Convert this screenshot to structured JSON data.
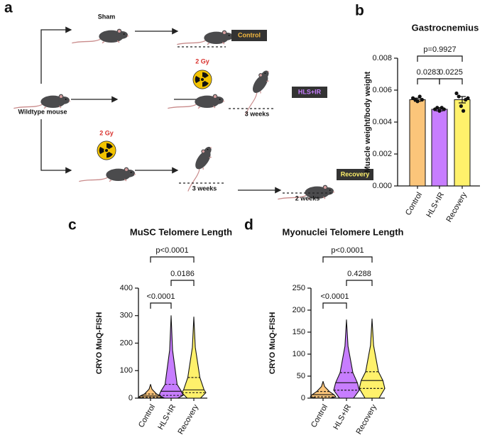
{
  "diagram": {
    "panel": "a",
    "sham": "Sham",
    "control": "Control",
    "dose1": "2 Gy",
    "hlsir": "HLS+IR",
    "wildtype": "Wildtype mouse",
    "weeks1": "3 weeks",
    "dose2": "2 Gy",
    "recovery": "Recovery",
    "weeks2": "3 weeks",
    "weeks3": "2 weeks"
  },
  "chart_data": [
    {
      "type": "bar",
      "panel": "b",
      "title": "Gastrocnemius",
      "ylabel": "Muscle weight/body weight",
      "categories": [
        "Control",
        "HLS+IR",
        "Recovery"
      ],
      "values": [
        0.0054,
        0.0048,
        0.0054
      ],
      "errors": [
        0.0001,
        0.0001,
        0.0002
      ],
      "points": [
        [
          0.0055,
          0.0054,
          0.0053,
          0.0056,
          0.0054
        ],
        [
          0.0048,
          0.0049,
          0.0047,
          0.0049,
          0.0048
        ],
        [
          0.0058,
          0.0056,
          0.005,
          0.0047,
          0.0054,
          0.0055
        ]
      ],
      "colors": [
        "#fbc57a",
        "#c77dff",
        "#fff16b"
      ],
      "ylim": [
        0,
        0.008
      ],
      "yticks": [
        {
          "value": 0,
          "label": "0.000"
        },
        {
          "value": 0.002,
          "label": "0.002"
        },
        {
          "value": 0.004,
          "label": "0.004"
        },
        {
          "value": 0.006,
          "label": "0.006"
        },
        {
          "value": 0.008,
          "label": "0.008"
        }
      ],
      "comparisons": [
        {
          "pair": [
            "Control",
            "HLS+IR"
          ],
          "label": "0.0283"
        },
        {
          "pair": [
            "HLS+IR",
            "Recovery"
          ],
          "label": "0.0225"
        },
        {
          "pair": [
            "Control",
            "Recovery"
          ],
          "label": "p=0.9927"
        }
      ]
    },
    {
      "type": "violin",
      "panel": "c",
      "title": "MuSC Telomere Length",
      "ylabel": "CRYO MuQ-FISH",
      "categories": [
        "Control",
        "HLS+IR",
        "Recovery"
      ],
      "violins": [
        {
          "min": 0,
          "q1": 3,
          "median": 8,
          "q3": 15,
          "max": 50
        },
        {
          "min": 0,
          "q1": 10,
          "median": 25,
          "q3": 50,
          "max": 300
        },
        {
          "min": 0,
          "q1": 20,
          "median": 30,
          "q3": 75,
          "max": 295
        }
      ],
      "colors": [
        "#fbc57a",
        "#c77dff",
        "#fff16b"
      ],
      "ylim": [
        0,
        400
      ],
      "yticks": [
        0,
        100,
        200,
        300,
        400
      ],
      "comparisons": [
        {
          "pair": [
            "Control",
            "HLS+IR"
          ],
          "label": "<0.0001"
        },
        {
          "pair": [
            "HLS+IR",
            "Recovery"
          ],
          "label": "0.0186"
        },
        {
          "pair": [
            "Control",
            "Recovery"
          ],
          "label": "p<0.0001"
        }
      ]
    },
    {
      "type": "violin",
      "panel": "d",
      "title": "Myonuclei Telomere Length",
      "ylabel": "CRYO MuQ-FISH",
      "categories": [
        "Control",
        "HLS+IR",
        "Recovery"
      ],
      "violins": [
        {
          "min": 0,
          "q1": 3,
          "median": 8,
          "q3": 15,
          "max": 38
        },
        {
          "min": 0,
          "q1": 18,
          "median": 35,
          "q3": 58,
          "max": 178
        },
        {
          "min": 0,
          "q1": 22,
          "median": 40,
          "q3": 60,
          "max": 180
        }
      ],
      "colors": [
        "#fbc57a",
        "#c77dff",
        "#fff16b"
      ],
      "ylim": [
        0,
        250
      ],
      "yticks": [
        0,
        50,
        100,
        150,
        200,
        250
      ],
      "comparisons": [
        {
          "pair": [
            "Control",
            "HLS+IR"
          ],
          "label": "<0.0001"
        },
        {
          "pair": [
            "HLS+IR",
            "Recovery"
          ],
          "label": "0.4288"
        },
        {
          "pair": [
            "Control",
            "Recovery"
          ],
          "label": "p<0.0001"
        }
      ]
    }
  ]
}
